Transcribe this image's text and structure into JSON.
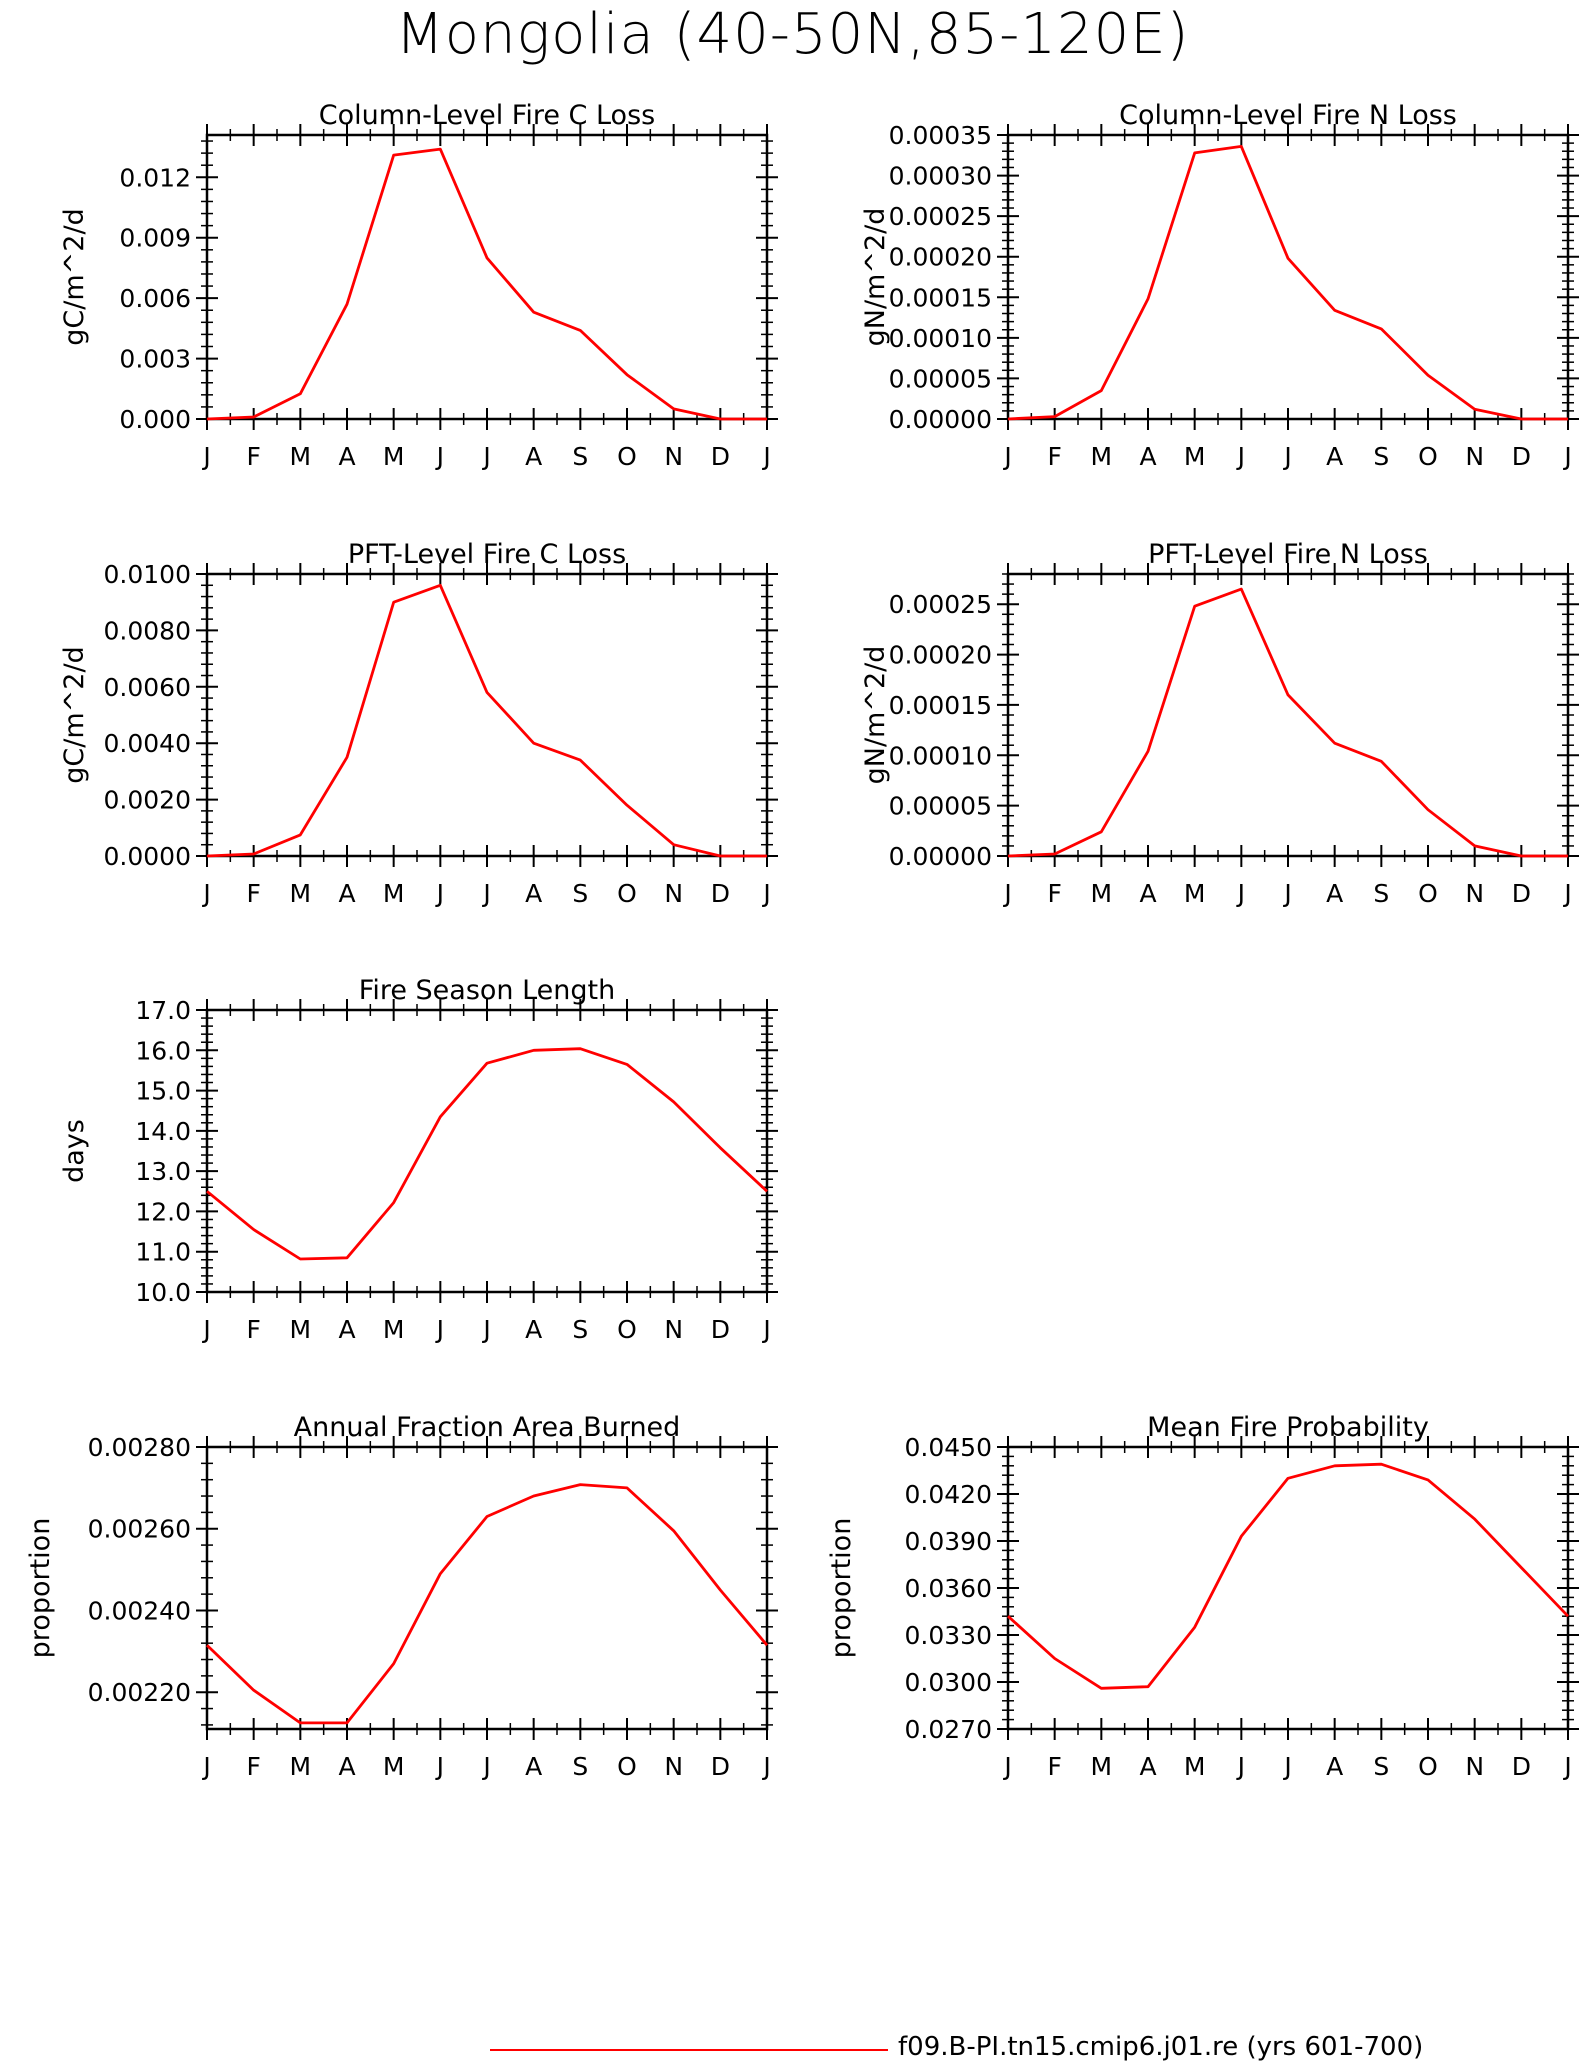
{
  "page": {
    "title": "Mongolia (40-50N,85-120E)"
  },
  "legend": {
    "label": "f09.B-PI.tn15.cmip6.j01.re (yrs 601-700)",
    "color": "#ff0000"
  },
  "chart_data": [
    {
      "type": "line",
      "title": "Column-Level Fire C Loss",
      "ylabel": "gC/m^2/d",
      "ylim": [
        0,
        0.0141
      ],
      "yticks": [
        0,
        0.003,
        0.006,
        0.009,
        0.012
      ],
      "ytick_labels": [
        "0.000",
        "0.003",
        "0.006",
        "0.009",
        "0.012"
      ],
      "categories": [
        "J",
        "F",
        "M",
        "A",
        "M",
        "J",
        "J",
        "A",
        "S",
        "O",
        "N",
        "D",
        "J"
      ],
      "series": [
        {
          "color": "#ff0000",
          "values": [
            0.0,
            0.0001,
            0.00125,
            0.0057,
            0.0131,
            0.0134,
            0.008,
            0.0053,
            0.0044,
            0.0022,
            0.0005,
            0.0,
            0.0
          ]
        }
      ]
    },
    {
      "type": "line",
      "title": "Column-Level Fire N Loss",
      "ylabel": "gN/m^2/d",
      "ylim": [
        0,
        0.00035
      ],
      "yticks": [
        0,
        5e-05,
        0.0001,
        0.00015,
        0.0002,
        0.00025,
        0.0003,
        0.00035
      ],
      "ytick_labels": [
        "0.00000",
        "0.00005",
        "0.00010",
        "0.00015",
        "0.00020",
        "0.00025",
        "0.00030",
        "0.00035"
      ],
      "categories": [
        "J",
        "F",
        "M",
        "A",
        "M",
        "J",
        "J",
        "A",
        "S",
        "O",
        "N",
        "D",
        "J"
      ],
      "series": [
        {
          "color": "#ff0000",
          "values": [
            0.0,
            3e-06,
            3.5e-05,
            0.000148,
            0.000328,
            0.000336,
            0.000198,
            0.000134,
            0.000111,
            5.4e-05,
            1.2e-05,
            0.0,
            0.0
          ]
        }
      ]
    },
    {
      "type": "line",
      "title": "PFT-Level Fire C Loss",
      "ylabel": "gC/m^2/d",
      "ylim": [
        0,
        0.01
      ],
      "yticks": [
        0,
        0.002,
        0.004,
        0.006,
        0.008,
        0.01
      ],
      "ytick_labels": [
        "0.0000",
        "0.0020",
        "0.0040",
        "0.0060",
        "0.0080",
        "0.0100"
      ],
      "categories": [
        "J",
        "F",
        "M",
        "A",
        "M",
        "J",
        "J",
        "A",
        "S",
        "O",
        "N",
        "D",
        "J"
      ],
      "series": [
        {
          "color": "#ff0000",
          "values": [
            0.0,
            7e-05,
            0.00075,
            0.0035,
            0.009,
            0.0096,
            0.0058,
            0.004,
            0.0034,
            0.0018,
            0.0004,
            0.0,
            0.0
          ]
        }
      ]
    },
    {
      "type": "line",
      "title": "PFT-Level Fire N Loss",
      "ylabel": "gN/m^2/d",
      "ylim": [
        0,
        0.00028
      ],
      "yticks": [
        0,
        5e-05,
        0.0001,
        0.00015,
        0.0002,
        0.00025
      ],
      "ytick_labels": [
        "0.00000",
        "0.00005",
        "0.00010",
        "0.00015",
        "0.00020",
        "0.00025"
      ],
      "categories": [
        "J",
        "F",
        "M",
        "A",
        "M",
        "J",
        "J",
        "A",
        "S",
        "O",
        "N",
        "D",
        "J"
      ],
      "series": [
        {
          "color": "#ff0000",
          "values": [
            0.0,
            2e-06,
            2.4e-05,
            0.000104,
            0.000248,
            0.000265,
            0.00016,
            0.000112,
            9.4e-05,
            4.6e-05,
            1e-05,
            0.0,
            0.0
          ]
        }
      ]
    },
    {
      "type": "line",
      "title": "Fire Season Length",
      "ylabel": "days",
      "ylim": [
        10,
        17
      ],
      "yticks": [
        10,
        11,
        12,
        13,
        14,
        15,
        16,
        17
      ],
      "ytick_labels": [
        "10.0",
        "11.0",
        "12.0",
        "13.0",
        "14.0",
        "15.0",
        "16.0",
        "17.0"
      ],
      "categories": [
        "J",
        "F",
        "M",
        "A",
        "M",
        "J",
        "J",
        "A",
        "S",
        "O",
        "N",
        "D",
        "J"
      ],
      "series": [
        {
          "color": "#ff0000",
          "values": [
            12.5,
            11.55,
            10.82,
            10.85,
            12.22,
            14.35,
            15.68,
            16.0,
            16.04,
            15.65,
            14.72,
            13.58,
            12.5
          ]
        }
      ]
    },
    {
      "type": "line",
      "title": "Annual Fraction Area Burned",
      "ylabel": "proportion",
      "ylim": [
        0.00211,
        0.0028
      ],
      "yticks": [
        0.0022,
        0.0024,
        0.0026,
        0.0028
      ],
      "ytick_labels": [
        "0.00220",
        "0.00240",
        "0.00260",
        "0.00280"
      ],
      "categories": [
        "J",
        "F",
        "M",
        "A",
        "M",
        "J",
        "J",
        "A",
        "S",
        "O",
        "N",
        "D",
        "J"
      ],
      "series": [
        {
          "color": "#ff0000",
          "values": [
            0.002315,
            0.002205,
            0.002125,
            0.002125,
            0.00227,
            0.00249,
            0.00263,
            0.00268,
            0.002708,
            0.0027,
            0.002595,
            0.00245,
            0.002315
          ]
        }
      ]
    },
    {
      "type": "line",
      "title": "Mean Fire Probability",
      "ylabel": "proportion",
      "ylim": [
        0.027,
        0.045
      ],
      "yticks": [
        0.027,
        0.03,
        0.033,
        0.036,
        0.039,
        0.042,
        0.045
      ],
      "ytick_labels": [
        "0.0270",
        "0.0300",
        "0.0330",
        "0.0360",
        "0.0390",
        "0.0420",
        "0.0450"
      ],
      "categories": [
        "J",
        "F",
        "M",
        "A",
        "M",
        "J",
        "J",
        "A",
        "S",
        "O",
        "N",
        "D",
        "J"
      ],
      "series": [
        {
          "color": "#ff0000",
          "values": [
            0.0342,
            0.0315,
            0.0296,
            0.0297,
            0.0335,
            0.0393,
            0.043,
            0.0438,
            0.0439,
            0.0429,
            0.0404,
            0.0373,
            0.0342
          ]
        }
      ]
    }
  ]
}
